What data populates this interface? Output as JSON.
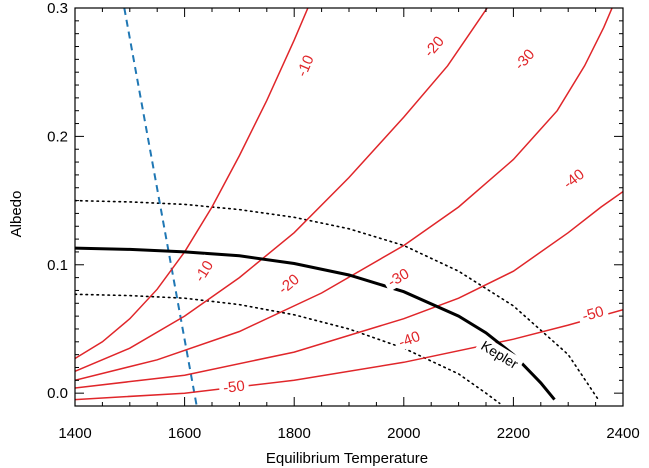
{
  "chart_data": {
    "type": "line",
    "title": "",
    "xlabel": "Equilibrium Temperature",
    "ylabel": "Albedo",
    "xlim": [
      1400,
      2400
    ],
    "ylim": [
      -0.01,
      0.3
    ],
    "x_ticks": [
      1400,
      1600,
      1800,
      2000,
      2200,
      2400
    ],
    "y_ticks": [
      0.0,
      0.1,
      0.2,
      0.3
    ],
    "x_tick_labels": [
      "1400",
      "1600",
      "1800",
      "2000",
      "2200",
      "2400"
    ],
    "y_tick_labels": [
      "0.0",
      "0.1",
      "0.2",
      "0.3"
    ],
    "grid": false,
    "legend": "none",
    "colors": {
      "contour": "#e0262a",
      "kepler": "#000000",
      "dashed": "#1f77b4"
    },
    "contour_series": [
      {
        "label": "-10",
        "label_at": [
          1635,
          0.095
        ],
        "label_at2": [
          1820,
          0.255
        ],
        "points": [
          [
            1400,
            0.027
          ],
          [
            1450,
            0.04
          ],
          [
            1500,
            0.058
          ],
          [
            1550,
            0.081
          ],
          [
            1600,
            0.11
          ],
          [
            1650,
            0.145
          ],
          [
            1700,
            0.185
          ],
          [
            1750,
            0.228
          ],
          [
            1800,
            0.275
          ],
          [
            1830,
            0.305
          ]
        ]
      },
      {
        "label": "-20",
        "label_at": [
          1790,
          0.085
        ],
        "label_at2": [
          2055,
          0.27
        ],
        "points": [
          [
            1400,
            0.017
          ],
          [
            1500,
            0.035
          ],
          [
            1600,
            0.06
          ],
          [
            1700,
            0.09
          ],
          [
            1800,
            0.125
          ],
          [
            1900,
            0.168
          ],
          [
            2000,
            0.215
          ],
          [
            2080,
            0.255
          ],
          [
            2120,
            0.28
          ],
          [
            2160,
            0.305
          ]
        ]
      },
      {
        "label": "-30",
        "label_at": [
          1990,
          0.09
        ],
        "label_at2": [
          2220,
          0.26
        ],
        "points": [
          [
            1400,
            0.01
          ],
          [
            1550,
            0.026
          ],
          [
            1700,
            0.048
          ],
          [
            1850,
            0.078
          ],
          [
            2000,
            0.115
          ],
          [
            2100,
            0.145
          ],
          [
            2200,
            0.182
          ],
          [
            2280,
            0.22
          ],
          [
            2330,
            0.255
          ],
          [
            2365,
            0.285
          ],
          [
            2385,
            0.305
          ]
        ]
      },
      {
        "label": "-40",
        "label_at": [
          2010,
          0.042
        ],
        "label_at2": [
          2310,
          0.167
        ],
        "points": [
          [
            1400,
            0.004
          ],
          [
            1600,
            0.014
          ],
          [
            1800,
            0.032
          ],
          [
            2000,
            0.058
          ],
          [
            2100,
            0.074
          ],
          [
            2200,
            0.095
          ],
          [
            2300,
            0.125
          ],
          [
            2360,
            0.145
          ],
          [
            2400,
            0.157
          ]
        ]
      },
      {
        "label": "-50",
        "label_at": [
          1690,
          0.005
        ],
        "label_at2": [
          2345,
          0.062
        ],
        "points": [
          [
            1400,
            -0.005
          ],
          [
            1600,
            0.0
          ],
          [
            1800,
            0.01
          ],
          [
            2000,
            0.024
          ],
          [
            2200,
            0.042
          ],
          [
            2300,
            0.053
          ],
          [
            2400,
            0.065
          ]
        ]
      }
    ],
    "kepler_curve": {
      "label": "Kepler",
      "points": [
        [
          1400,
          0.113
        ],
        [
          1500,
          0.112
        ],
        [
          1600,
          0.11
        ],
        [
          1700,
          0.107
        ],
        [
          1800,
          0.101
        ],
        [
          1900,
          0.092
        ],
        [
          2000,
          0.079
        ],
        [
          2100,
          0.06
        ],
        [
          2150,
          0.047
        ],
        [
          2200,
          0.03
        ],
        [
          2250,
          0.008
        ],
        [
          2275,
          -0.005
        ]
      ]
    },
    "uncertainty_curves": [
      {
        "points": [
          [
            1400,
            0.15
          ],
          [
            1500,
            0.149
          ],
          [
            1600,
            0.147
          ],
          [
            1700,
            0.143
          ],
          [
            1800,
            0.137
          ],
          [
            1900,
            0.128
          ],
          [
            2000,
            0.115
          ],
          [
            2100,
            0.095
          ],
          [
            2200,
            0.068
          ],
          [
            2300,
            0.03
          ],
          [
            2355,
            -0.005
          ]
        ]
      },
      {
        "points": [
          [
            1400,
            0.077
          ],
          [
            1500,
            0.076
          ],
          [
            1600,
            0.074
          ],
          [
            1700,
            0.069
          ],
          [
            1800,
            0.061
          ],
          [
            1900,
            0.05
          ],
          [
            2000,
            0.035
          ],
          [
            2100,
            0.015
          ],
          [
            2150,
            0.0
          ],
          [
            2175,
            -0.008
          ]
        ]
      }
    ],
    "dashed_line": {
      "points": [
        [
          1490,
          0.3
        ],
        [
          1622,
          -0.01
        ]
      ]
    }
  }
}
